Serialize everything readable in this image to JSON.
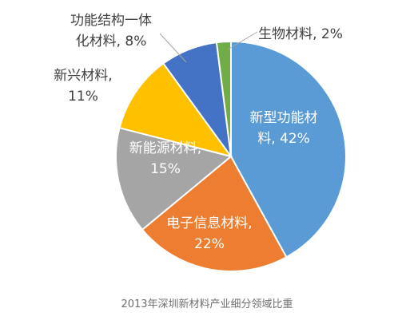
{
  "chart_data": {
    "type": "pie",
    "caption": "2013年深圳新材料产业细分领域比重",
    "slices": [
      {
        "name": "新型功能材料",
        "value": 42,
        "pct_label": "42%",
        "color": "#5b9bd5",
        "label_lines": [
          "新型功能材",
          "料, 42%"
        ],
        "label_color": "#ffffff"
      },
      {
        "name": "电子信息材料",
        "value": 22,
        "pct_label": "22%",
        "color": "#ed7d31",
        "label_lines": [
          "电子信息材料,",
          "22%"
        ],
        "label_color": "#ffffff"
      },
      {
        "name": "新能源材料",
        "value": 15,
        "pct_label": "15%",
        "color": "#a5a5a5",
        "label_lines": [
          "新能源材料,",
          "15%"
        ],
        "label_color": "#ffffff"
      },
      {
        "name": "新兴材料",
        "value": 11,
        "pct_label": "11%",
        "color": "#ffc000",
        "label_lines": [
          "新兴材料,",
          "11%"
        ],
        "label_color": "#404040"
      },
      {
        "name": "功能结构一体化材料",
        "value": 8,
        "pct_label": "8%",
        "color": "#4472c4",
        "label_lines": [
          "功能结构一体",
          "化材料, 8%"
        ],
        "label_color": "#404040"
      },
      {
        "name": "生物材料",
        "value": 2,
        "pct_label": "2%",
        "color": "#70ad47",
        "label_lines": [
          "生物材料, 2%"
        ],
        "label_color": "#404040"
      }
    ]
  }
}
